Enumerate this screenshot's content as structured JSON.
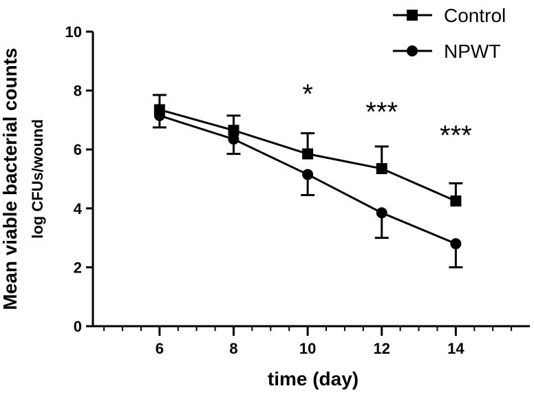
{
  "chart_data": {
    "type": "line",
    "title": "",
    "xlabel": "time (day)",
    "ylabel": "Mean viable bacterial counts",
    "ylabel_sub": "log CFUs/wound",
    "xlim": [
      4.2,
      16.0
    ],
    "ylim": [
      0,
      10
    ],
    "x_ticks": [
      6,
      8,
      10,
      12,
      14
    ],
    "y_ticks": [
      0,
      2,
      4,
      6,
      8,
      10
    ],
    "x": [
      6,
      8,
      10,
      12,
      14
    ],
    "series": [
      {
        "name": "Control",
        "marker": "square",
        "values": [
          7.35,
          6.65,
          5.85,
          5.35,
          4.25
        ],
        "errors": [
          0.5,
          0.5,
          0.7,
          0.75,
          0.6
        ]
      },
      {
        "name": "NPWT",
        "marker": "circle",
        "values": [
          7.15,
          6.35,
          5.15,
          3.85,
          2.8
        ],
        "errors": [
          0.4,
          0.5,
          0.7,
          0.85,
          0.8
        ]
      }
    ],
    "annotations": [
      {
        "x": 10,
        "text": "*"
      },
      {
        "x": 12,
        "text": "***"
      },
      {
        "x": 14,
        "text": "***"
      }
    ],
    "legend_position": "top-right",
    "grid": false
  }
}
